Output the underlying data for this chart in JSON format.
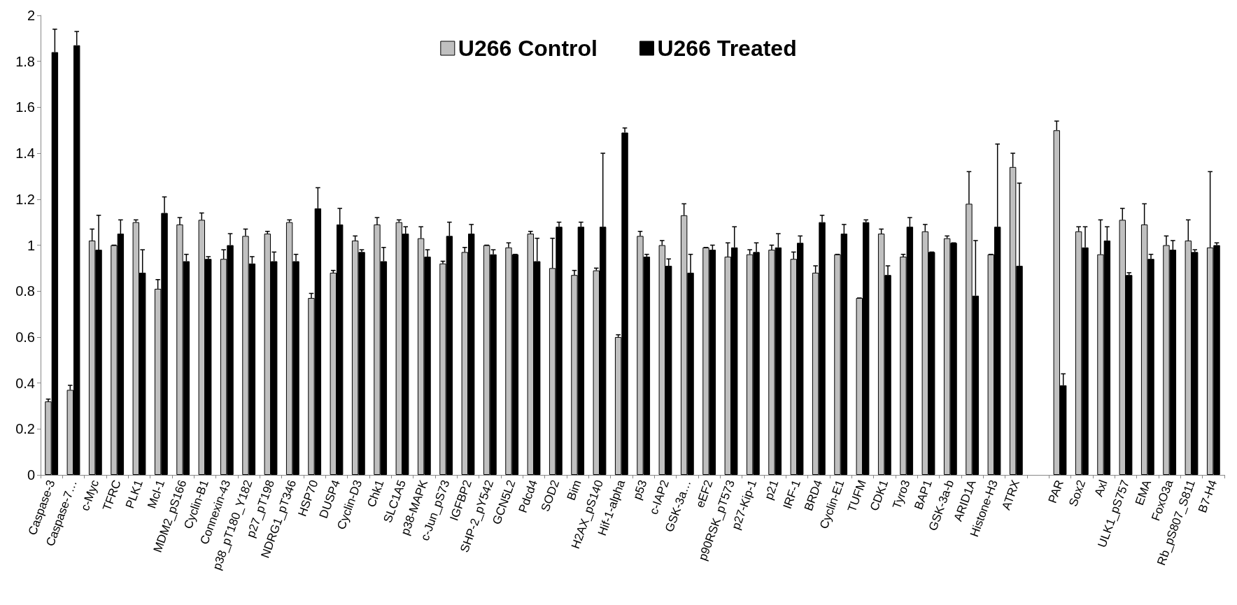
{
  "chart_data": {
    "type": "bar",
    "categories": [
      "Caspase-3",
      "Caspase-7…",
      "c-Myc",
      "TFRC",
      "PLK1",
      "Mcl-1",
      "MDM2_pS166",
      "Cyclin-B1",
      "Connexin-43",
      "p38_pT180_Y182",
      "p27_pT198",
      "NDRG1_pT346",
      "HSP70",
      "DUSP4",
      "Cyclin-D3",
      "Chk1",
      "SLC1A5",
      "p38-MAPK",
      "c-Jun_pS73",
      "IGFBP2",
      "SHP-2_pY542",
      "GCN5L2",
      "Pdcd4",
      "SOD2",
      "Bim",
      "H2AX_pS140",
      "Hif-1-alpha",
      "p53",
      "c-IAP2",
      "GSK-3a…",
      "eEF2",
      "p90RSK_pT573",
      "p27-Kip-1",
      "p21",
      "IRF-1",
      "BRD4",
      "Cyclin-E1",
      "TUFM",
      "CDK1",
      "Tyro3",
      "BAP1",
      "GSK-3a-b",
      "ARID1A",
      "Histone-H3",
      "ATRX",
      null,
      "PAR",
      "Sox2",
      "Axl",
      "ULK1_pS757",
      "EMA",
      "FoxO3a",
      "Rb_pS807_S811",
      "B7-H4"
    ],
    "series": [
      {
        "name": "U266 Control",
        "color": "#c0c0c0",
        "values": [
          0.32,
          0.37,
          1.02,
          1.0,
          1.1,
          0.81,
          1.09,
          1.11,
          0.94,
          1.04,
          1.05,
          1.1,
          0.77,
          0.88,
          1.02,
          1.09,
          1.1,
          1.03,
          0.92,
          0.97,
          1.0,
          0.99,
          1.05,
          0.9,
          0.87,
          0.89,
          0.6,
          1.04,
          1.0,
          1.13,
          0.99,
          0.95,
          0.96,
          0.98,
          0.94,
          0.88,
          0.96,
          0.77,
          1.05,
          0.95,
          1.06,
          1.03,
          1.18,
          0.96,
          1.34,
          null,
          1.5,
          1.06,
          0.96,
          1.11,
          1.09,
          1.0,
          1.02,
          0.99
        ],
        "errors": [
          [
            0.32,
            0.33
          ],
          [
            0.37,
            0.39
          ],
          [
            1.02,
            1.07
          ],
          [
            1.0,
            1.0
          ],
          [
            1.1,
            1.11
          ],
          [
            0.81,
            0.85
          ],
          [
            1.09,
            1.12
          ],
          [
            1.11,
            1.14
          ],
          [
            0.94,
            0.98
          ],
          [
            1.04,
            1.07
          ],
          [
            1.05,
            1.06
          ],
          [
            1.1,
            1.11
          ],
          [
            0.77,
            0.79
          ],
          [
            0.88,
            0.89
          ],
          [
            1.02,
            1.04
          ],
          [
            1.09,
            1.12
          ],
          [
            1.1,
            1.11
          ],
          [
            1.03,
            1.08
          ],
          [
            0.92,
            0.93
          ],
          [
            0.97,
            0.99
          ],
          [
            1.0,
            1.0
          ],
          [
            0.99,
            1.01
          ],
          [
            1.05,
            1.06
          ],
          [
            0.9,
            1.03
          ],
          [
            0.87,
            0.89
          ],
          [
            0.89,
            0.9
          ],
          [
            0.6,
            0.61
          ],
          [
            1.04,
            1.06
          ],
          [
            1.0,
            1.02
          ],
          [
            1.13,
            1.18
          ],
          [
            0.99,
            0.99
          ],
          [
            0.95,
            1.01
          ],
          [
            0.96,
            0.98
          ],
          [
            0.98,
            1.0
          ],
          [
            0.94,
            0.97
          ],
          [
            0.88,
            0.91
          ],
          [
            0.96,
            0.96
          ],
          [
            0.77,
            0.77
          ],
          [
            1.05,
            1.07
          ],
          [
            0.95,
            0.96
          ],
          [
            1.06,
            1.09
          ],
          [
            1.03,
            1.04
          ],
          [
            1.18,
            1.32
          ],
          [
            0.96,
            0.96
          ],
          [
            1.34,
            1.4
          ],
          null,
          [
            1.5,
            1.54
          ],
          [
            1.06,
            1.08
          ],
          [
            0.96,
            1.11
          ],
          [
            1.11,
            1.16
          ],
          [
            1.09,
            1.18
          ],
          [
            1.0,
            1.04
          ],
          [
            1.02,
            1.11
          ],
          [
            0.99,
            1.32
          ]
        ]
      },
      {
        "name": "U266 Treated",
        "color": "#000000",
        "values": [
          1.84,
          1.87,
          0.98,
          1.05,
          0.88,
          1.14,
          0.93,
          0.94,
          1.0,
          0.92,
          0.93,
          0.93,
          1.16,
          1.09,
          0.97,
          0.93,
          1.05,
          0.95,
          1.04,
          1.05,
          0.96,
          0.96,
          0.93,
          1.08,
          1.08,
          1.08,
          1.49,
          0.95,
          0.91,
          0.88,
          0.98,
          0.99,
          0.97,
          0.99,
          1.01,
          1.1,
          1.05,
          1.1,
          0.87,
          1.08,
          0.97,
          1.01,
          0.78,
          1.08,
          0.91,
          null,
          0.39,
          0.99,
          1.02,
          0.87,
          0.94,
          0.98,
          0.97,
          1.0
        ],
        "errors": [
          [
            1.84,
            1.94
          ],
          [
            1.87,
            1.93
          ],
          [
            0.98,
            1.13
          ],
          [
            1.05,
            1.11
          ],
          [
            0.88,
            0.98
          ],
          [
            1.14,
            1.21
          ],
          [
            0.93,
            0.96
          ],
          [
            0.94,
            0.95
          ],
          [
            1.0,
            1.05
          ],
          [
            0.92,
            0.95
          ],
          [
            0.93,
            0.97
          ],
          [
            0.93,
            0.96
          ],
          [
            1.16,
            1.25
          ],
          [
            1.09,
            1.16
          ],
          [
            0.97,
            0.98
          ],
          [
            0.93,
            0.99
          ],
          [
            1.05,
            1.08
          ],
          [
            0.95,
            0.98
          ],
          [
            1.04,
            1.1
          ],
          [
            1.05,
            1.09
          ],
          [
            0.96,
            0.98
          ],
          [
            0.96,
            0.96
          ],
          [
            0.93,
            1.03
          ],
          [
            1.08,
            1.1
          ],
          [
            1.08,
            1.1
          ],
          [
            1.08,
            1.4
          ],
          [
            1.49,
            1.51
          ],
          [
            0.95,
            0.96
          ],
          [
            0.91,
            0.94
          ],
          [
            0.88,
            0.96
          ],
          [
            0.98,
            1.0
          ],
          [
            0.99,
            1.08
          ],
          [
            0.97,
            1.01
          ],
          [
            0.99,
            1.05
          ],
          [
            1.01,
            1.04
          ],
          [
            1.1,
            1.13
          ],
          [
            1.05,
            1.09
          ],
          [
            1.1,
            1.11
          ],
          [
            0.87,
            0.91
          ],
          [
            1.08,
            1.12
          ],
          [
            0.97,
            0.97
          ],
          [
            1.01,
            1.01
          ],
          [
            0.78,
            1.02
          ],
          [
            1.08,
            1.44
          ],
          [
            0.91,
            1.27
          ],
          null,
          [
            0.39,
            0.44
          ],
          [
            0.99,
            1.08
          ],
          [
            1.02,
            1.08
          ],
          [
            0.87,
            0.88
          ],
          [
            0.94,
            0.96
          ],
          [
            0.98,
            1.02
          ],
          [
            0.97,
            0.98
          ],
          [
            1.0,
            1.01
          ]
        ]
      }
    ],
    "ylim": [
      0,
      2
    ],
    "yticks": [
      0,
      0.2,
      0.4,
      0.6,
      0.8,
      1,
      1.2,
      1.4,
      1.6,
      1.8,
      2
    ],
    "grid": false,
    "legend": "top"
  }
}
